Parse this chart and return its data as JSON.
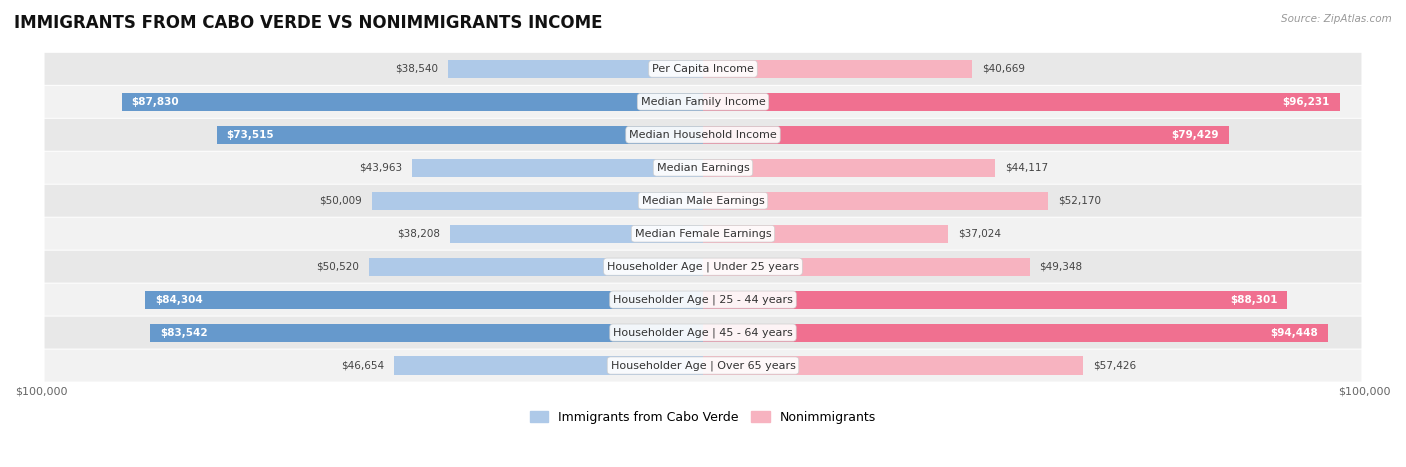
{
  "title": "IMMIGRANTS FROM CABO VERDE VS NONIMMIGRANTS INCOME",
  "source": "Source: ZipAtlas.com",
  "categories": [
    "Per Capita Income",
    "Median Family Income",
    "Median Household Income",
    "Median Earnings",
    "Median Male Earnings",
    "Median Female Earnings",
    "Householder Age | Under 25 years",
    "Householder Age | 25 - 44 years",
    "Householder Age | 45 - 64 years",
    "Householder Age | Over 65 years"
  ],
  "immigrants": [
    38540,
    87830,
    73515,
    43963,
    50009,
    38208,
    50520,
    84304,
    83542,
    46654
  ],
  "nonimmigrants": [
    40669,
    96231,
    79429,
    44117,
    52170,
    37024,
    49348,
    88301,
    94448,
    57426
  ],
  "max_value": 100000,
  "immigrant_color_light": "#aec9e8",
  "immigrant_color_dark": "#6699cc",
  "nonimmigrant_color_light": "#f7b3c0",
  "nonimmigrant_color_dark": "#f07090",
  "bar_height": 0.55,
  "background_color": "#ffffff",
  "row_bg_even": "#f2f2f2",
  "row_bg_odd": "#e8e8e8",
  "title_fontsize": 12,
  "label_fontsize": 8,
  "value_fontsize": 7.5,
  "legend_fontsize": 9,
  "axis_label_fontsize": 8,
  "large_threshold": 60000
}
